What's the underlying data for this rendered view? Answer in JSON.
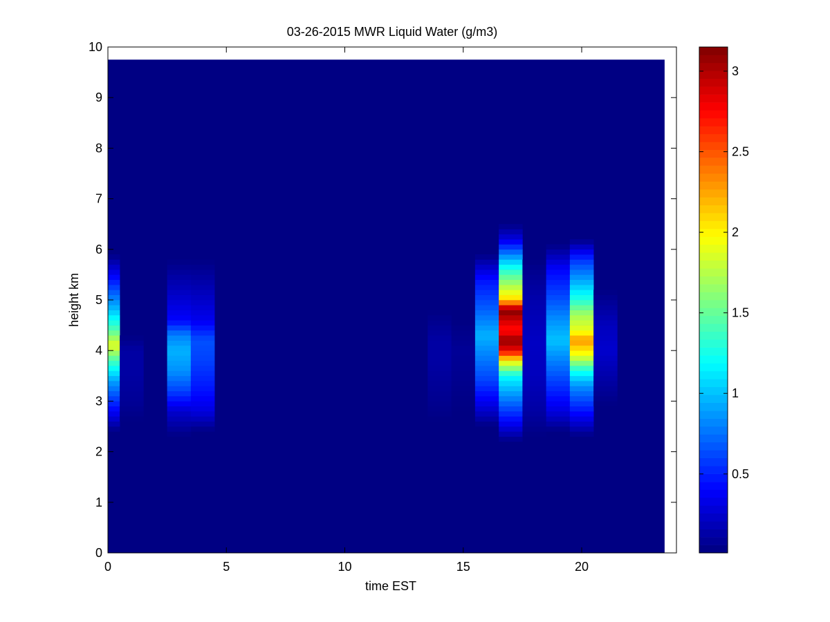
{
  "chart_data": {
    "type": "heatmap",
    "title": "03-26-2015 MWR Liquid Water (g/m3)",
    "xlabel": "time EST",
    "ylabel": "height km",
    "xlim": [
      0,
      24
    ],
    "ylim": [
      0,
      10
    ],
    "xticks": [
      0,
      5,
      10,
      15,
      20
    ],
    "xtick_labels": [
      "0",
      "5",
      "10",
      "15",
      "20"
    ],
    "yticks": [
      0,
      1,
      2,
      3,
      4,
      5,
      6,
      7,
      8,
      9,
      10
    ],
    "ytick_labels": [
      "0",
      "1",
      "2",
      "3",
      "4",
      "5",
      "6",
      "7",
      "8",
      "9",
      "10"
    ],
    "colorbar": {
      "colormap": "jet",
      "range": [
        0.01,
        3.15
      ],
      "ticks": [
        0.5,
        1,
        1.5,
        2,
        2.5,
        3
      ],
      "tick_labels": [
        "0.5",
        "1",
        "1.5",
        "2",
        "2.5",
        "3"
      ]
    },
    "grid": false,
    "data_extent": {
      "x": [
        0,
        23.5
      ],
      "y": [
        0,
        9.75
      ]
    },
    "background_value": 0.02,
    "time_columns": [
      {
        "x": [
          0,
          0.5
        ],
        "profile": [
          [
            2.4,
            0.02
          ],
          [
            2.7,
            0.3
          ],
          [
            3.0,
            0.55
          ],
          [
            3.4,
            0.9
          ],
          [
            3.8,
            1.4
          ],
          [
            4.1,
            1.9
          ],
          [
            4.4,
            1.45
          ],
          [
            4.8,
            1.0
          ],
          [
            5.3,
            0.55
          ],
          [
            5.9,
            0.02
          ]
        ]
      },
      {
        "x": [
          0.5,
          1.5
        ],
        "profile": [
          [
            2.6,
            0.02
          ],
          [
            3.0,
            0.08
          ],
          [
            3.6,
            0.12
          ],
          [
            4.0,
            0.12
          ],
          [
            4.3,
            0.02
          ]
        ]
      },
      {
        "x": [
          2.5,
          3.5
        ],
        "profile": [
          [
            2.3,
            0.02
          ],
          [
            2.8,
            0.25
          ],
          [
            3.2,
            0.6
          ],
          [
            3.6,
            0.85
          ],
          [
            4.0,
            0.95
          ],
          [
            4.3,
            0.8
          ],
          [
            4.6,
            0.4
          ],
          [
            5.2,
            0.2
          ],
          [
            5.8,
            0.02
          ]
        ]
      },
      {
        "x": [
          3.5,
          4.5
        ],
        "profile": [
          [
            2.4,
            0.02
          ],
          [
            2.8,
            0.3
          ],
          [
            3.2,
            0.45
          ],
          [
            3.8,
            0.6
          ],
          [
            4.2,
            0.65
          ],
          [
            4.6,
            0.35
          ],
          [
            5.3,
            0.15
          ],
          [
            5.8,
            0.02
          ]
        ]
      },
      {
        "x": [
          13.5,
          14.5
        ],
        "profile": [
          [
            2.6,
            0.02
          ],
          [
            3.0,
            0.06
          ],
          [
            3.8,
            0.12
          ],
          [
            4.2,
            0.12
          ],
          [
            4.8,
            0.02
          ]
        ]
      },
      {
        "x": [
          14.5,
          15.5
        ],
        "profile": [
          [
            2.8,
            0.02
          ],
          [
            3.5,
            0.06
          ],
          [
            4.0,
            0.08
          ],
          [
            4.6,
            0.02
          ]
        ]
      },
      {
        "x": [
          15.5,
          16.5
        ],
        "profile": [
          [
            2.5,
            0.02
          ],
          [
            2.9,
            0.3
          ],
          [
            3.4,
            0.6
          ],
          [
            3.9,
            0.8
          ],
          [
            4.3,
            0.95
          ],
          [
            4.8,
            0.7
          ],
          [
            5.4,
            0.45
          ],
          [
            5.9,
            0.02
          ]
        ]
      },
      {
        "x": [
          16.5,
          17.5
        ],
        "profile": [
          [
            2.2,
            0.02
          ],
          [
            2.6,
            0.4
          ],
          [
            3.0,
            0.75
          ],
          [
            3.5,
            1.2
          ],
          [
            3.8,
            2.0
          ],
          [
            4.0,
            2.8
          ],
          [
            4.2,
            3.1
          ],
          [
            4.4,
            2.7
          ],
          [
            4.6,
            2.9
          ],
          [
            4.8,
            3.15
          ],
          [
            5.0,
            2.1
          ],
          [
            5.3,
            1.7
          ],
          [
            5.6,
            1.3
          ],
          [
            5.9,
            0.8
          ],
          [
            6.2,
            0.3
          ],
          [
            6.5,
            0.02
          ]
        ]
      },
      {
        "x": [
          17.5,
          18.5
        ],
        "profile": [
          [
            2.3,
            0.02
          ],
          [
            2.8,
            0.12
          ],
          [
            3.5,
            0.2
          ],
          [
            4.2,
            0.22
          ],
          [
            5.0,
            0.15
          ],
          [
            5.8,
            0.02
          ]
        ]
      },
      {
        "x": [
          18.5,
          19.5
        ],
        "profile": [
          [
            2.4,
            0.02
          ],
          [
            2.8,
            0.3
          ],
          [
            3.3,
            0.55
          ],
          [
            3.8,
            0.8
          ],
          [
            4.2,
            1.0
          ],
          [
            4.6,
            0.85
          ],
          [
            5.0,
            0.65
          ],
          [
            5.6,
            0.4
          ],
          [
            6.1,
            0.02
          ]
        ]
      },
      {
        "x": [
          19.5,
          20.5
        ],
        "profile": [
          [
            2.3,
            0.02
          ],
          [
            2.8,
            0.45
          ],
          [
            3.3,
            0.85
          ],
          [
            3.6,
            1.25
          ],
          [
            3.9,
            1.9
          ],
          [
            4.2,
            2.3
          ],
          [
            4.4,
            1.9
          ],
          [
            4.7,
            1.7
          ],
          [
            5.0,
            1.3
          ],
          [
            5.4,
            0.9
          ],
          [
            5.8,
            0.55
          ],
          [
            6.2,
            0.02
          ]
        ]
      },
      {
        "x": [
          20.5,
          21.5
        ],
        "profile": [
          [
            2.9,
            0.02
          ],
          [
            3.4,
            0.12
          ],
          [
            4.0,
            0.25
          ],
          [
            4.5,
            0.2
          ],
          [
            5.2,
            0.02
          ]
        ]
      }
    ]
  }
}
